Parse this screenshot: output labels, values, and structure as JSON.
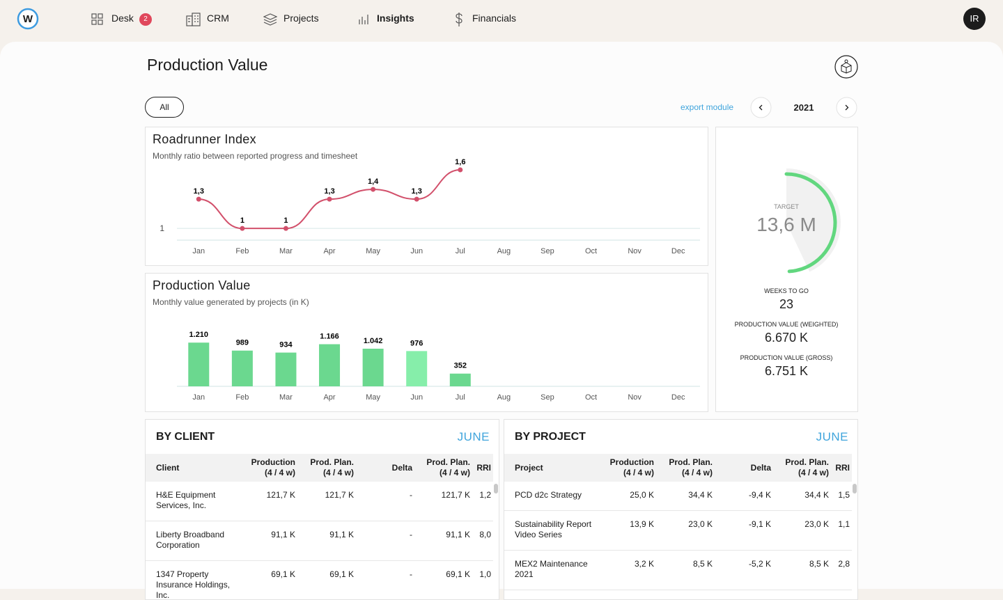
{
  "nav": {
    "logo": "W",
    "items": [
      {
        "label": "Desk",
        "badge": 2
      },
      {
        "label": "CRM"
      },
      {
        "label": "Projects"
      },
      {
        "label": "Insights"
      },
      {
        "label": "Financials"
      }
    ],
    "avatar": "IR"
  },
  "header": {
    "title": "Production Value",
    "filter": "All",
    "export": "export module",
    "year": "2021"
  },
  "chart_data": [
    {
      "type": "line",
      "title": "Roadrunner Index",
      "subtitle": "Monthly ratio between reported progress and timesheet",
      "categories": [
        "Jan",
        "Feb",
        "Mar",
        "Apr",
        "May",
        "Jun",
        "Jul",
        "Aug",
        "Sep",
        "Oct",
        "Nov",
        "Dec"
      ],
      "values": [
        1.3,
        1,
        1,
        1.3,
        1.4,
        1.3,
        1.6,
        null,
        null,
        null,
        null,
        null
      ],
      "value_labels": [
        "1,3",
        "1",
        "1",
        "1,3",
        "1,4",
        "1,3",
        "1,6",
        null,
        null,
        null,
        null,
        null
      ],
      "color": "#d2506b",
      "ylim": [
        0.88,
        1.7
      ],
      "yticks": [
        1
      ],
      "grid": true
    },
    {
      "type": "bar",
      "title": "Production Value",
      "subtitle": "Monthly value generated by projects (in K)",
      "categories": [
        "Jan",
        "Feb",
        "Mar",
        "Apr",
        "May",
        "Jun",
        "Jul",
        "Aug",
        "Sep",
        "Oct",
        "Nov",
        "Dec"
      ],
      "values": [
        1210,
        989,
        934,
        1166,
        1042,
        976,
        352,
        null,
        null,
        null,
        null,
        null
      ],
      "value_labels": [
        "1.210",
        "989",
        "934",
        "1.166",
        "1.042",
        "976",
        "352",
        null,
        null,
        null,
        null,
        null
      ],
      "colors": [
        "#6bd88f",
        "#6bd88f",
        "#6bd88f",
        "#6bd88f",
        "#6bd88f",
        "#86eeaa",
        "#6bd88f",
        "#6bd88f",
        "#6bd88f",
        "#6bd88f",
        "#6bd88f",
        "#6bd88f"
      ],
      "ylim": [
        0,
        1600
      ]
    }
  ],
  "gauge": {
    "target_title": "TARGET",
    "target": {
      "value": 13600,
      "label": "13,6 M"
    },
    "weeks_title": "WEEKS TO GO",
    "weeks": 23,
    "weighted_title": "PRODUCTION VALUE (WEIGHTED)",
    "weighted": {
      "value": 6670,
      "label": "6.670 K"
    },
    "gross_title": "PRODUCTION VALUE (GROSS)",
    "gross": {
      "value": 6751,
      "label": "6.751 K"
    },
    "color": "#62d77f"
  },
  "by_client": {
    "title": "BY CLIENT",
    "month": "JUNE",
    "headers": [
      [
        "Client"
      ],
      [
        "Production",
        "(4 / 4 w)"
      ],
      [
        "Prod. Plan.",
        "(4 / 4 w)"
      ],
      [
        "Delta"
      ],
      [
        "Prod. Plan.",
        "(4 / 4 w)"
      ],
      [
        "RRI"
      ]
    ],
    "rows": [
      [
        "H&E Equipment Services, Inc.",
        "121,7 K",
        "121,7 K",
        "-",
        "121,7 K",
        "1,2"
      ],
      [
        "Liberty Broadband Corporation",
        "91,1 K",
        "91,1 K",
        "-",
        "91,1 K",
        "8,0"
      ],
      [
        "1347 Property Insurance Holdings, Inc.",
        "69,1 K",
        "69,1 K",
        "-",
        "69,1 K",
        "1,0"
      ]
    ]
  },
  "by_project": {
    "title": "BY PROJECT",
    "month": "JUNE",
    "headers": [
      [
        "Project"
      ],
      [
        "Production",
        "(4 / 4 w)"
      ],
      [
        "Prod. Plan.",
        "(4 / 4 w)"
      ],
      [
        "Delta"
      ],
      [
        "Prod. Plan.",
        "(4 / 4 w)"
      ],
      [
        "RRI"
      ]
    ],
    "rows": [
      [
        "PCD d2c Strategy",
        "25,0 K",
        "34,4 K",
        "-9,4 K",
        "34,4 K",
        "1,5"
      ],
      [
        "Sustainability Report Video Series",
        "13,9 K",
        "23,0 K",
        "-9,1 K",
        "23,0 K",
        "1,1"
      ],
      [
        "MEX2 Maintenance 2021",
        "3,2 K",
        "8,5 K",
        "-5,2 K",
        "8,5 K",
        "2,8"
      ]
    ]
  }
}
